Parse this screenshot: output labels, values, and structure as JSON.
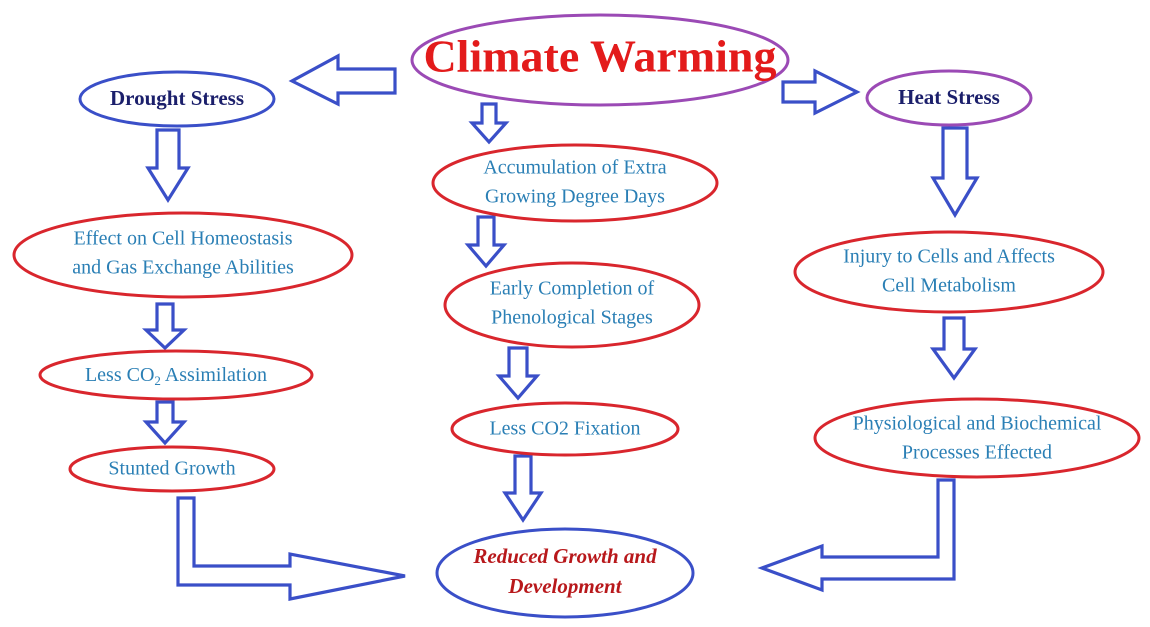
{
  "colors": {
    "title_text": "#e31b1b",
    "title_border": "#9b4ab5",
    "stress_text": "#1b1f6b",
    "drought_border": "#3a4fc8",
    "heat_border": "#9b4ab5",
    "process_border": "#d9262d",
    "process_text": "#2a7fb5",
    "outcome_border": "#3a4fc8",
    "outcome_text": "#b8181b",
    "arrow_stroke": "#3a4fc8"
  },
  "title": {
    "label": "Climate Warming"
  },
  "drought": {
    "label": "Drought Stress",
    "step1": {
      "line1": "Effect on Cell Homeostasis",
      "line2": "and Gas Exchange Abilities"
    },
    "step2": {
      "prefix": "Less CO",
      "subscript": "2",
      "suffix": " Assimilation"
    },
    "step3": {
      "label": "Stunted Growth"
    }
  },
  "center": {
    "step1": {
      "line1": "Accumulation of Extra",
      "line2": "Growing Degree Days"
    },
    "step2": {
      "line1": "Early Completion of",
      "line2": "Phenological Stages"
    },
    "step3": {
      "label": "Less CO2 Fixation"
    }
  },
  "heat": {
    "label": "Heat Stress",
    "step1": {
      "line1": "Injury to Cells and Affects",
      "line2": "Cell Metabolism"
    },
    "step2": {
      "line1": "Physiological and Biochemical",
      "line2": "Processes Effected"
    }
  },
  "outcome": {
    "line1": "Reduced Growth and",
    "line2": "Development"
  }
}
